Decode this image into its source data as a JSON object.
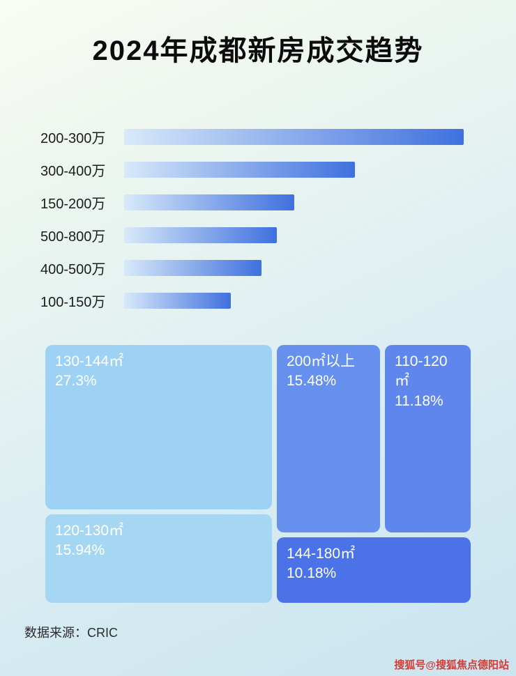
{
  "title": "2024年成都新房成交趋势",
  "chart_data": [
    {
      "type": "bar",
      "orientation": "horizontal",
      "categories": [
        "200-300万",
        "300-400万",
        "150-200万",
        "500-800万",
        "400-500万",
        "100-150万"
      ],
      "values": [
        100,
        68,
        50,
        45,
        40.5,
        31.5
      ],
      "value_note": "relative bar width percent of longest bar; no numeric labels shown in image",
      "bar_gradient": [
        "#d8e9f9",
        "#3f70de"
      ],
      "grid": false,
      "legend": false
    },
    {
      "type": "treemap",
      "items": [
        {
          "label": "130-144㎡",
          "percent": "27.3%",
          "value": 27.3,
          "color": "#9dd2f4"
        },
        {
          "label": "200㎡以上",
          "percent": "15.48%",
          "value": 15.48,
          "color": "#6590ee"
        },
        {
          "label": "110-120㎡",
          "percent": "11.18%",
          "value": 11.18,
          "color": "#5f86ec"
        },
        {
          "label": "120-130㎡",
          "percent": "15.94%",
          "value": 15.94,
          "color": "#a6d7f2"
        },
        {
          "label": "144-180㎡",
          "percent": "10.18%",
          "value": 10.18,
          "color": "#4b72e7"
        }
      ]
    }
  ],
  "footer": {
    "source": "数据来源：CRIC"
  },
  "watermark": {
    "text": "搜狐号@搜狐焦点德阳站",
    "color": "#d93a31"
  }
}
